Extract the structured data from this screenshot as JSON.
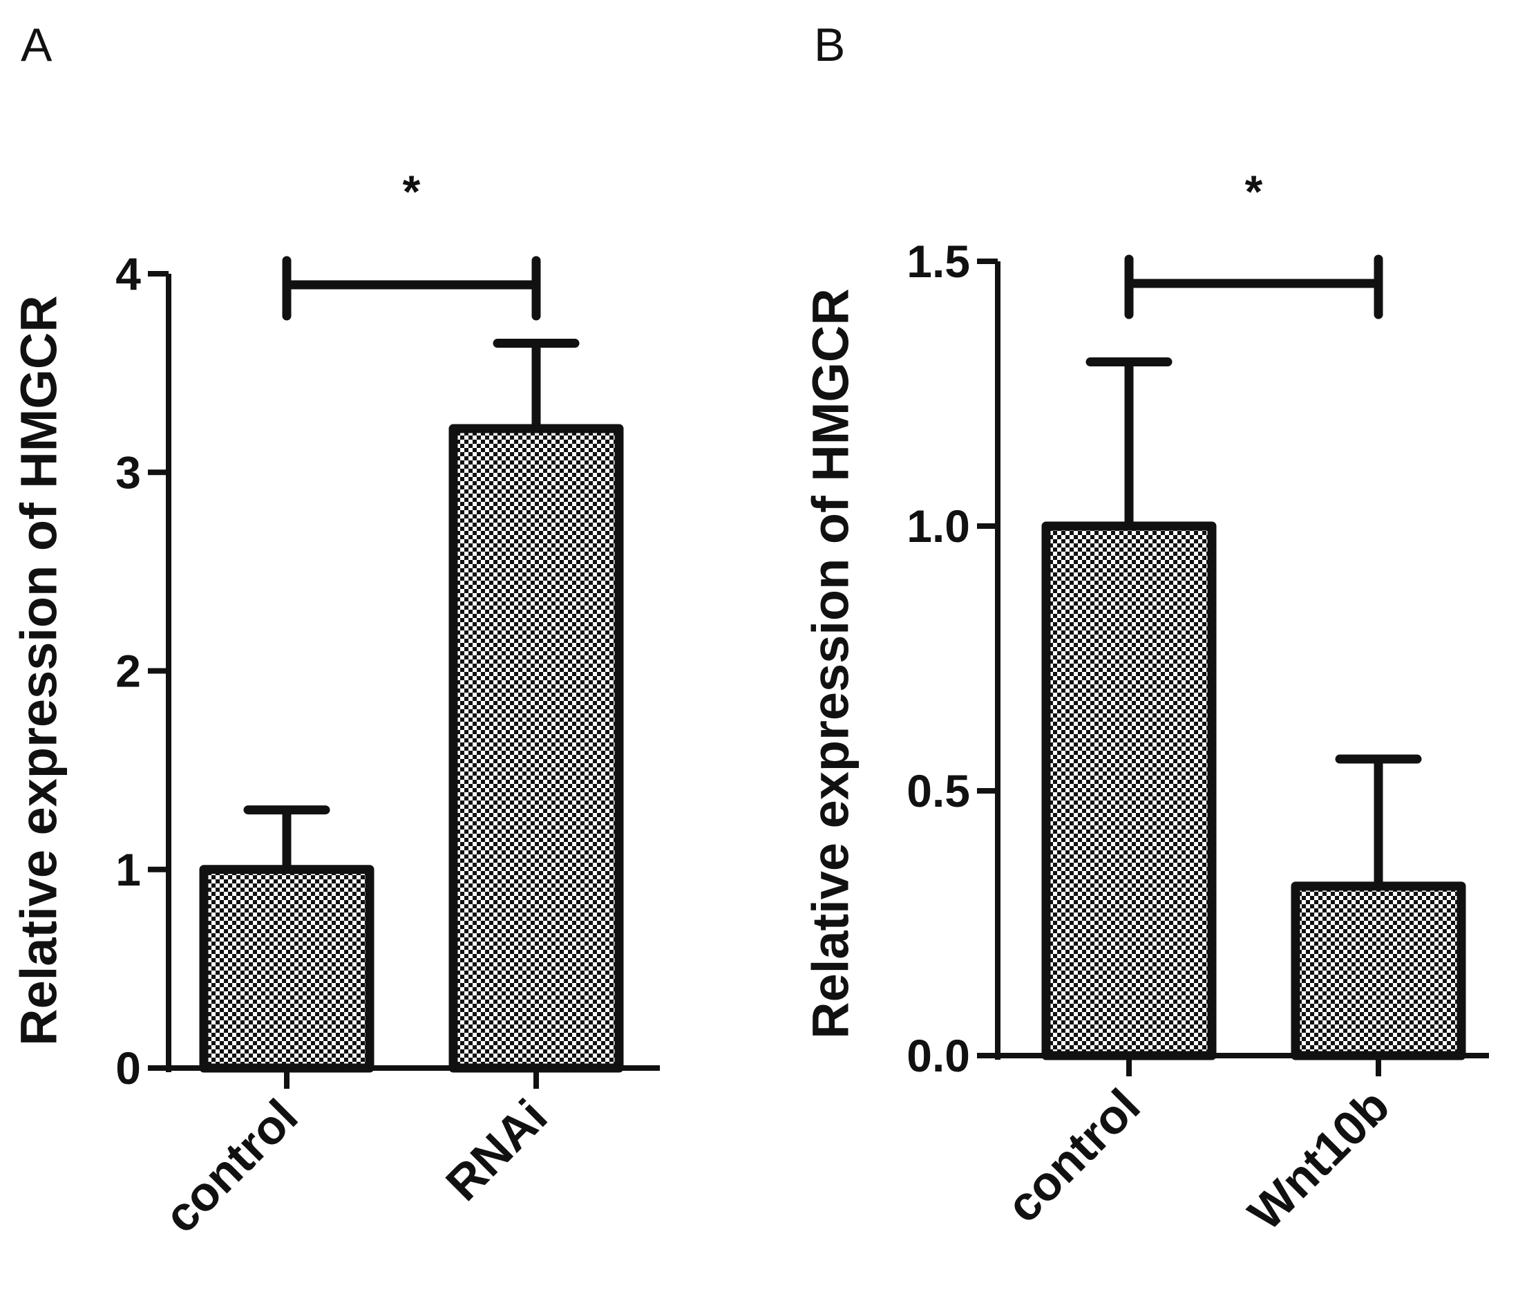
{
  "chart_data": [
    {
      "type": "bar",
      "panel_label": "A",
      "categories": [
        "control",
        "RNAi"
      ],
      "values": [
        1.0,
        3.22
      ],
      "error_upper": [
        0.3,
        0.43
      ],
      "ylabel": "Relative expression of HMGCR",
      "ylim": [
        0,
        4
      ],
      "yticks": [
        0,
        1,
        2,
        3,
        4
      ],
      "ytick_labels": [
        "0",
        "1",
        "2",
        "3",
        "4"
      ],
      "significance": {
        "between": [
          "control",
          "RNAi"
        ],
        "label": "*"
      }
    },
    {
      "type": "bar",
      "panel_label": "B",
      "categories": [
        "control",
        "Wnt10b"
      ],
      "values": [
        1.0,
        0.32
      ],
      "error_upper": [
        0.31,
        0.24
      ],
      "ylabel": "Relative expression of HMGCR",
      "ylim": [
        0,
        1.5
      ],
      "yticks": [
        0,
        0.5,
        1.0,
        1.5
      ],
      "ytick_labels": [
        "0.0",
        "0.5",
        "1.0",
        "1.5"
      ],
      "significance": {
        "between": [
          "control",
          "Wnt10b"
        ],
        "label": "*"
      }
    }
  ]
}
